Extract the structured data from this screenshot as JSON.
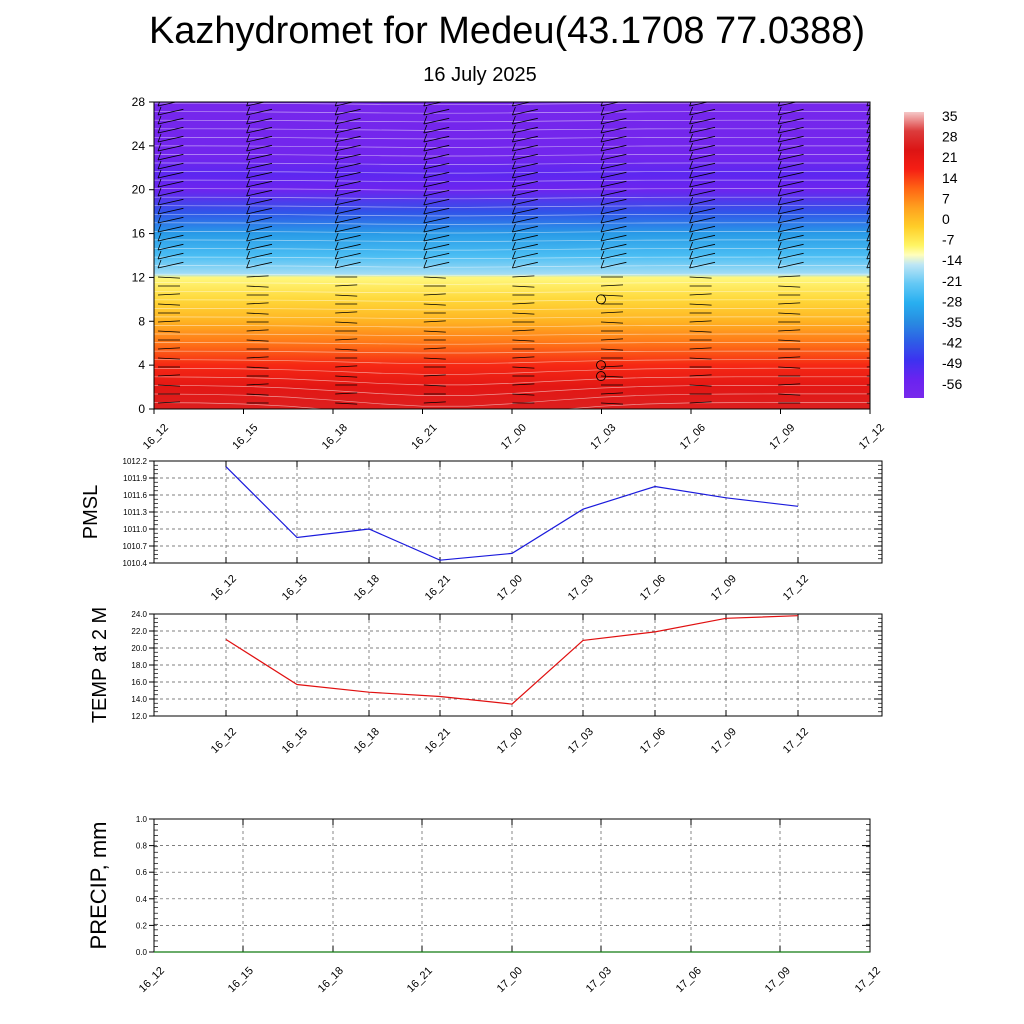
{
  "title": "Kazhydromet for Medeu(43.1708 77.0388)",
  "subtitle": "16 July 2025",
  "colors": {
    "pmsl_line": "#1a1adc",
    "temp_line": "#e01010",
    "precip_line": "#107a10",
    "grid": "#555555"
  },
  "chart_data": [
    {
      "type": "heatmap",
      "name": "cross-section",
      "x_ticks": [
        "16_12",
        "16_15",
        "16_18",
        "16_21",
        "17_00",
        "17_03",
        "17_06",
        "17_09",
        "17_12"
      ],
      "y_ticks": [
        0,
        4,
        8,
        12,
        16,
        20,
        24,
        28
      ],
      "ylim": [
        0,
        28
      ],
      "colorbar": {
        "labels": [
          "35",
          "28",
          "21",
          "14",
          "7",
          "0",
          "-7",
          "-14",
          "-21",
          "-28",
          "-35",
          "-42",
          "-49",
          "-56"
        ],
        "range": [
          -63,
          42
        ]
      },
      "temperature_profile": [
        {
          "y": 0,
          "value": 30
        },
        {
          "y": 2,
          "value": 26
        },
        {
          "y": 4,
          "value": 20
        },
        {
          "y": 6,
          "value": 12
        },
        {
          "y": 8,
          "value": 4
        },
        {
          "y": 10,
          "value": -2
        },
        {
          "y": 12,
          "value": -8
        },
        {
          "y": 12.3,
          "value": -16
        },
        {
          "y": 14,
          "value": -24
        },
        {
          "y": 16,
          "value": -32
        },
        {
          "y": 18,
          "value": -44
        },
        {
          "y": 20,
          "value": -58
        },
        {
          "y": 21.5,
          "value": -54
        },
        {
          "y": 23,
          "value": -60
        },
        {
          "y": 28,
          "value": -62
        }
      ]
    },
    {
      "type": "line",
      "name": "pmsl",
      "ylabel": "PMSL",
      "y_ticks": [
        "1010.4",
        "1010.7",
        "1011.0",
        "1011.3",
        "1011.6",
        "1011.9",
        "1012.2"
      ],
      "ylim": [
        1010.4,
        1012.2
      ],
      "x_ticks": [
        "16_12",
        "16_15",
        "16_18",
        "16_21",
        "17_00",
        "17_03",
        "17_06",
        "17_09",
        "17_12"
      ],
      "values": [
        1012.1,
        1010.85,
        1011.0,
        1010.45,
        1010.57,
        1011.35,
        1011.75,
        1011.55,
        1011.4
      ]
    },
    {
      "type": "line",
      "name": "temp",
      "ylabel": "TEMP at 2 M",
      "y_ticks": [
        "12.0",
        "14.0",
        "16.0",
        "18.0",
        "20.0",
        "22.0",
        "24.0"
      ],
      "ylim": [
        12,
        24
      ],
      "x_ticks": [
        "16_12",
        "16_15",
        "16_18",
        "16_21",
        "17_00",
        "17_03",
        "17_06",
        "17_09",
        "17_12"
      ],
      "values": [
        21.0,
        15.7,
        14.8,
        14.3,
        13.4,
        20.9,
        21.9,
        23.5,
        23.8
      ]
    },
    {
      "type": "line",
      "name": "precip",
      "ylabel": "PRECIP, mm",
      "y_ticks": [
        "0.0",
        "0.2",
        "0.4",
        "0.6",
        "0.8",
        "1.0"
      ],
      "ylim": [
        0,
        1
      ],
      "x_ticks": [
        "16_12",
        "16_15",
        "16_18",
        "16_21",
        "17_00",
        "17_03",
        "17_06",
        "17_09",
        "17_12"
      ],
      "values": [
        0,
        0,
        0,
        0,
        0,
        0,
        0,
        0,
        0
      ]
    }
  ]
}
